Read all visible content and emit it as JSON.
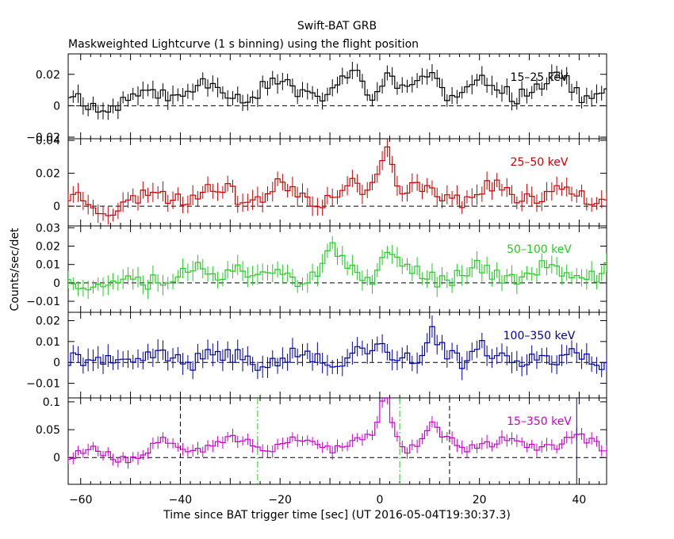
{
  "chart_data": {
    "type": "line",
    "title": "Swift-BAT GRB",
    "subtitle": "Maskweighted Lightcurve (1 s binning) using the flight position",
    "xlabel": "Time since BAT trigger time [sec] (UT 2016-05-04T19:30:37.3)",
    "ylabel": "Counts/sec/det",
    "xlim": [
      -62.5,
      45.5
    ],
    "x_ticks": [
      -60,
      -40,
      -20,
      0,
      20,
      40
    ],
    "x_tick_labels": [
      "−60",
      "−40",
      "−20",
      "0",
      "20",
      "40"
    ],
    "binning_sec": 1,
    "panels": [
      {
        "name": "15-25 keV",
        "label": "15–25 keV",
        "color": "#000000",
        "ylim": [
          -0.021,
          0.033
        ],
        "yticks": [
          -0.02,
          0,
          0.02
        ],
        "ytick_labels": [
          "−0.02",
          "0",
          "0.02"
        ],
        "baseline": 10,
        "amp": 5.5,
        "noise": 4.5,
        "err": 5,
        "scale": 0.001,
        "seed": 11,
        "peaks": [
          [
            1,
            12
          ],
          [
            10,
            10
          ],
          [
            -5,
            7
          ],
          [
            30,
            6
          ],
          [
            35,
            6
          ]
        ],
        "vlines": []
      },
      {
        "name": "25-50 keV",
        "label": "25–50 keV",
        "color": "#cc0000",
        "ylim": [
          -0.012,
          0.041
        ],
        "yticks": [
          0,
          0.02,
          0.04
        ],
        "ytick_labels": [
          "0",
          "0.02",
          "0.04"
        ],
        "baseline": 8,
        "amp": 5,
        "noise": 4.5,
        "err": 5,
        "scale": 0.001,
        "seed": 23,
        "peaks": [
          [
            1,
            22
          ],
          [
            0,
            12
          ]
        ],
        "vlines": []
      },
      {
        "name": "50-100 keV",
        "label": "50–100 keV",
        "color": "#22cc22",
        "ylim": [
          -0.016,
          0.031
        ],
        "yticks": [
          -0.01,
          0,
          0.01,
          0.02,
          0.03
        ],
        "ytick_labels": [
          "−0.01",
          "0",
          "0.01",
          "0.02",
          "0.03"
        ],
        "baseline": 5,
        "amp": 4,
        "noise": 4,
        "err": 4.5,
        "scale": 0.001,
        "seed": 37,
        "peaks": [
          [
            1,
            16
          ],
          [
            -10,
            10
          ],
          [
            -30,
            8
          ]
        ],
        "vlines": []
      },
      {
        "name": "100-350 keV",
        "label": "100–350 keV",
        "color": "#0000aa",
        "ylim": [
          -0.017,
          0.024
        ],
        "yticks": [
          -0.01,
          0,
          0.01,
          0.02
        ],
        "ytick_labels": [
          "−0.01",
          "0",
          "0.01",
          "0.02"
        ],
        "baseline": 2,
        "amp": 2,
        "noise": 4,
        "err": 4.5,
        "scale": 0.001,
        "seed": 41,
        "peaks": [
          [
            0,
            11
          ],
          [
            10,
            10
          ],
          [
            19,
            9
          ]
        ],
        "vlines": []
      },
      {
        "name": "15-350 keV",
        "label": "15–350 keV",
        "color": "#cc00cc",
        "ylim": [
          -0.048,
          0.107
        ],
        "yticks": [
          0,
          0.05,
          0.1
        ],
        "ytick_labels": [
          "0",
          "0.05",
          "0.1"
        ],
        "baseline": 25,
        "amp": 10,
        "noise": 8,
        "err": 10,
        "scale": 0.001,
        "seed": 53,
        "peaks": [
          [
            1,
            55
          ],
          [
            0,
            30
          ],
          [
            10,
            25
          ]
        ],
        "vlines": [
          {
            "x": -40,
            "color": "#000000",
            "style": "dashed"
          },
          {
            "x": -24.5,
            "color": "#22cc22",
            "style": "dashdot"
          },
          {
            "x": 4,
            "color": "#22cc22",
            "style": "dashdot"
          },
          {
            "x": 14,
            "color": "#000000",
            "style": "dashed"
          },
          {
            "x": 39.5,
            "color": "#0000aa",
            "style": "solid"
          }
        ]
      }
    ]
  }
}
